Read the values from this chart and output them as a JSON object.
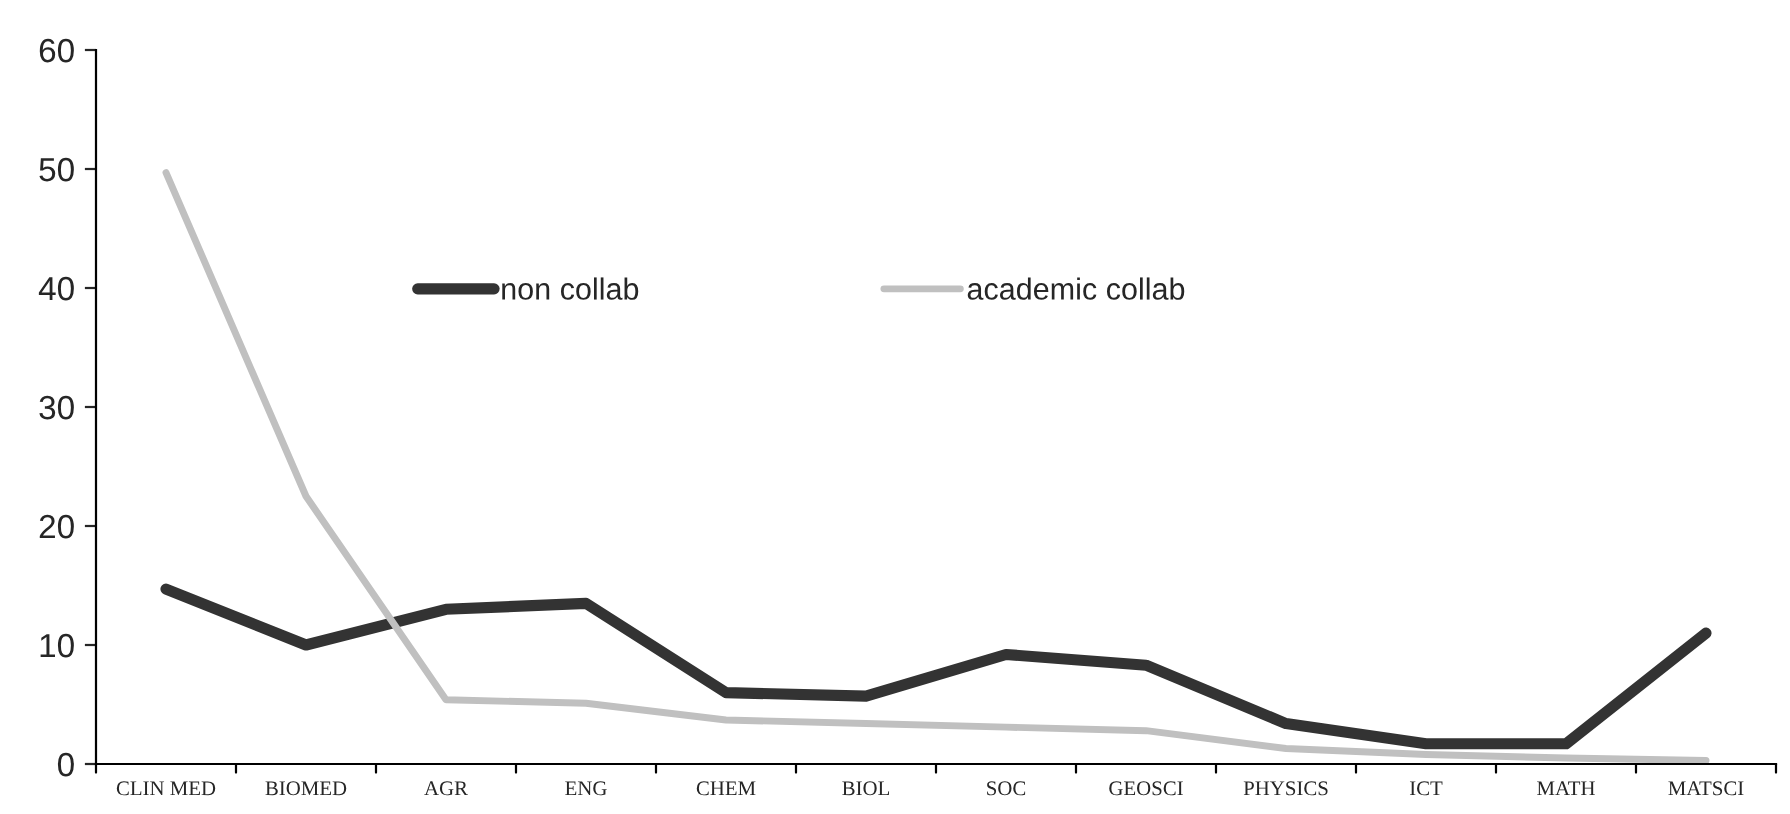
{
  "chart_data": {
    "type": "line",
    "categories": [
      "CLIN MED",
      "BIOMED",
      "AGR",
      "ENG",
      "CHEM",
      "BIOL",
      "SOC",
      "GEOSCI",
      "PHYSICS",
      "ICT",
      "MATH",
      "MATSCI"
    ],
    "series": [
      {
        "name": "non collab",
        "color": "#333333",
        "values": [
          14.7,
          10,
          13,
          13.5,
          6,
          5.7,
          9.2,
          8.3,
          3.4,
          1.7,
          1.7,
          11
        ]
      },
      {
        "name": "academic collab",
        "color": "#c0c0c0",
        "values": [
          49.7,
          22.5,
          5.4,
          5.1,
          3.7,
          3.4,
          3.1,
          2.8,
          1.3,
          0.8,
          0.5,
          0.3
        ]
      }
    ],
    "ylim": [
      0,
      60
    ],
    "yticks": [
      0,
      10,
      20,
      30,
      40,
      50,
      60
    ],
    "grid": false,
    "legend": "top",
    "marker": "none",
    "line_style": "solid"
  }
}
